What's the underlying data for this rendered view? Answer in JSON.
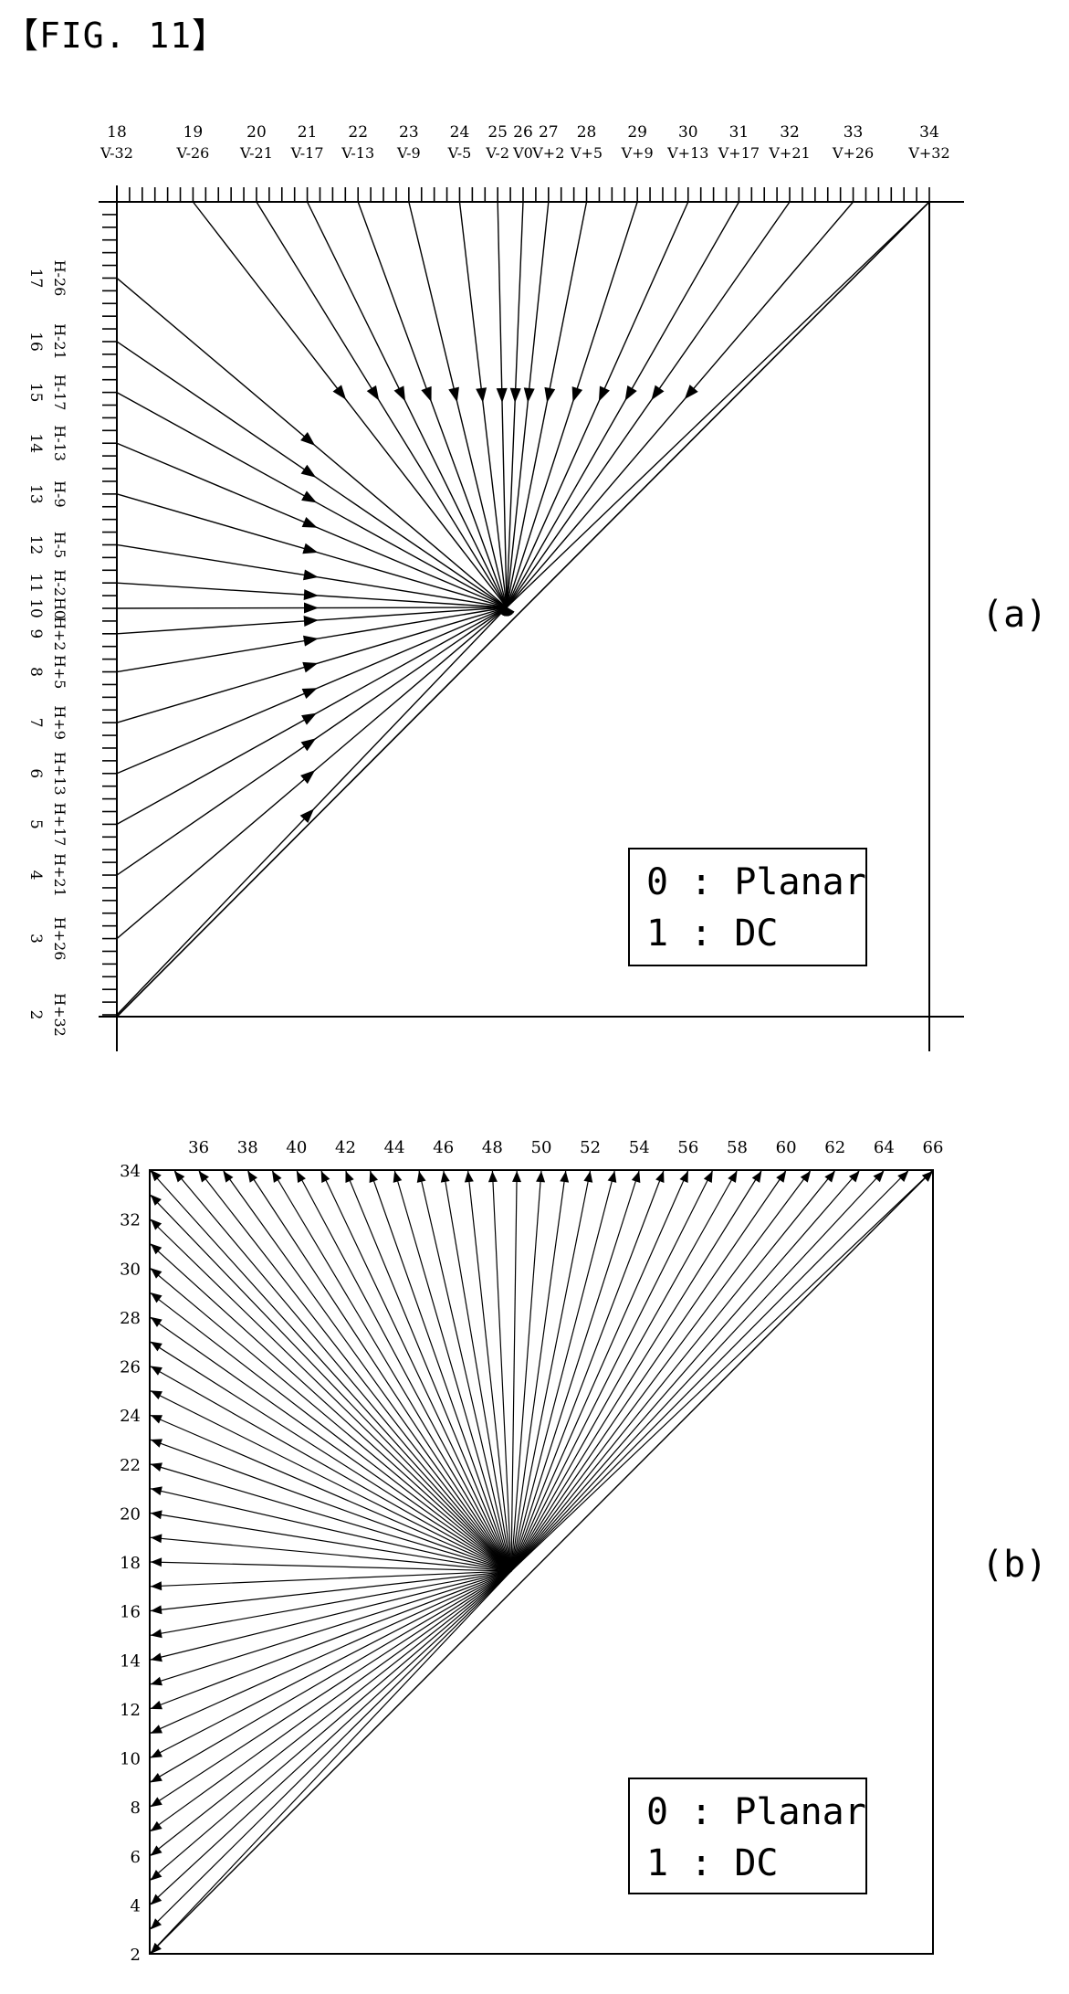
{
  "figure_label": "【FIG. 11】",
  "part_a": {
    "label": "(a)",
    "legend": [
      "0 : Planar",
      "1 : DC"
    ],
    "top_modes": [
      {
        "mode": "18",
        "angle": "V-32"
      },
      {
        "mode": "19",
        "angle": "V-26"
      },
      {
        "mode": "20",
        "angle": "V-21"
      },
      {
        "mode": "21",
        "angle": "V-17"
      },
      {
        "mode": "22",
        "angle": "V-13"
      },
      {
        "mode": "23",
        "angle": "V-9"
      },
      {
        "mode": "24",
        "angle": "V-5"
      },
      {
        "mode": "25",
        "angle": "V-2"
      },
      {
        "mode": "26",
        "angle": "V0"
      },
      {
        "mode": "27",
        "angle": "V+2"
      },
      {
        "mode": "28",
        "angle": "V+5"
      },
      {
        "mode": "29",
        "angle": "V+9"
      },
      {
        "mode": "30",
        "angle": "V+13"
      },
      {
        "mode": "31",
        "angle": "V+17"
      },
      {
        "mode": "32",
        "angle": "V+21"
      },
      {
        "mode": "33",
        "angle": "V+26"
      },
      {
        "mode": "34",
        "angle": "V+32"
      }
    ],
    "left_modes": [
      {
        "mode": "17",
        "angle": "H-26"
      },
      {
        "mode": "16",
        "angle": "H-21"
      },
      {
        "mode": "15",
        "angle": "H-17"
      },
      {
        "mode": "14",
        "angle": "H-13"
      },
      {
        "mode": "13",
        "angle": "H-9"
      },
      {
        "mode": "12",
        "angle": "H-5"
      },
      {
        "mode": "11",
        "angle": "H-2"
      },
      {
        "mode": "10",
        "angle": "H0"
      },
      {
        "mode": "9",
        "angle": "H+2"
      },
      {
        "mode": "8",
        "angle": "H+5"
      },
      {
        "mode": "7",
        "angle": "H+9"
      },
      {
        "mode": "6",
        "angle": "H+13"
      },
      {
        "mode": "5",
        "angle": "H+17"
      },
      {
        "mode": "4",
        "angle": "H+21"
      },
      {
        "mode": "3",
        "angle": "H+26"
      },
      {
        "mode": "2",
        "angle": "H+32"
      }
    ]
  },
  "part_b": {
    "label": "(b)",
    "legend": [
      "0 : Planar",
      "1 : DC"
    ],
    "top_labels": [
      "36",
      "38",
      "40",
      "42",
      "44",
      "46",
      "48",
      "50",
      "52",
      "54",
      "56",
      "58",
      "60",
      "62",
      "64",
      "66"
    ],
    "left_labels": [
      "34",
      "32",
      "30",
      "28",
      "26",
      "24",
      "22",
      "20",
      "18",
      "16",
      "14",
      "12",
      "10",
      "8",
      "6",
      "4",
      "2"
    ]
  }
}
